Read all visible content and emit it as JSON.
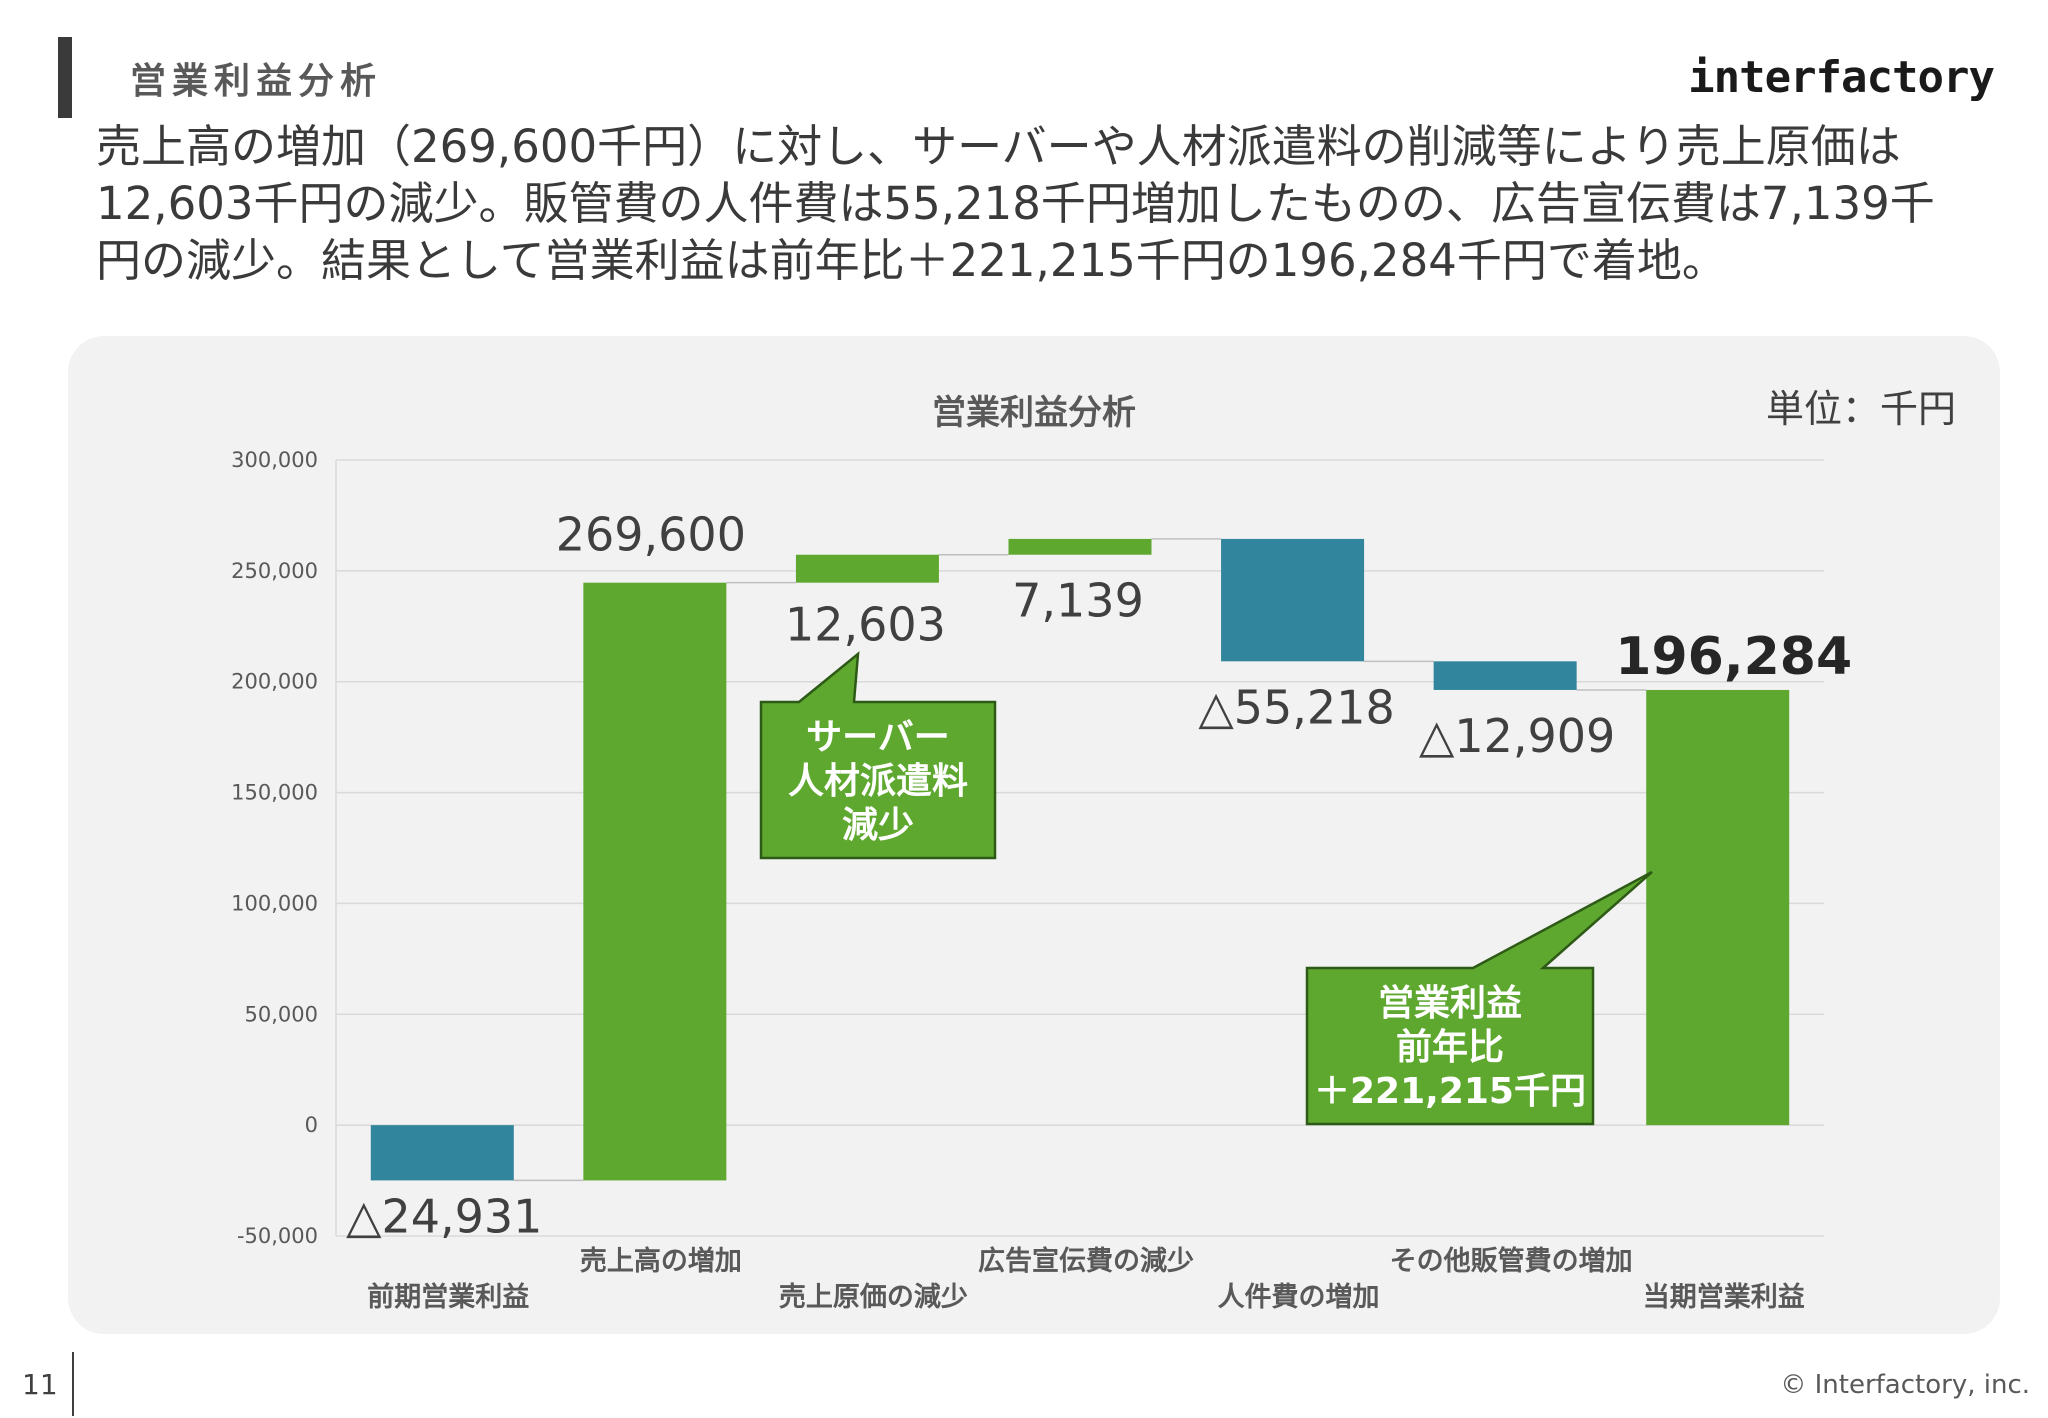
{
  "header": {
    "title": "営業利益分析",
    "brand": "interfactory"
  },
  "lead": [
    "売上高の増加（269,600千円）に対し、サーバーや人材派遣料の削減等により売上原価は",
    "12,603千円の減少。販管費の人件費は55,218千円増加したものの、広告宣伝費は7,139千",
    "円の減少。結果として営業利益は前年比＋221,215千円の196,284千円で着地。"
  ],
  "footer": {
    "page": "11",
    "copyright": "© Interfactory, inc."
  },
  "colors": {
    "increase": "#5fa830",
    "decrease": "#31859c",
    "callout_fill": "#5fa830",
    "callout_border": "#2d5a16",
    "panel": "#f2f2f2"
  },
  "chart_data": {
    "type": "bar",
    "subtype": "waterfall",
    "title": "営業利益分析",
    "unit_label": "単位：千円",
    "ylim": [
      -50000,
      300000
    ],
    "yticks": [
      "300,000",
      "250,000",
      "200,000",
      "150,000",
      "100,000",
      "50,000",
      "0",
      "-50,000"
    ],
    "ytick_values": [
      300000,
      250000,
      200000,
      150000,
      100000,
      50000,
      0,
      -50000
    ],
    "grid": true,
    "categories": [
      "前期営業利益",
      "売上高の増加",
      "売上原価の減少",
      "広告宣伝費の減少",
      "人件費の増加",
      "その他販管費の増加",
      "当期営業利益"
    ],
    "bars": [
      {
        "category": "前期営業利益",
        "from": 0,
        "to": -24931,
        "label": "△24,931",
        "color": "decrease"
      },
      {
        "category": "売上高の増加",
        "from": -24931,
        "to": 244669,
        "label": "269,600",
        "color": "increase"
      },
      {
        "category": "売上原価の減少",
        "from": 244669,
        "to": 257272,
        "label": "12,603",
        "color": "increase"
      },
      {
        "category": "広告宣伝費の減少",
        "from": 257272,
        "to": 264411,
        "label": "7,139",
        "color": "increase"
      },
      {
        "category": "人件費の増加",
        "from": 264411,
        "to": 209193,
        "label": "△55,218",
        "color": "decrease"
      },
      {
        "category": "その他販管費の増加",
        "from": 209193,
        "to": 196284,
        "label": "△12,909",
        "color": "decrease"
      },
      {
        "category": "当期営業利益",
        "from": 0,
        "to": 196284,
        "label": "196,284",
        "color": "increase"
      }
    ],
    "callouts": [
      {
        "lines": [
          "サーバー",
          "人材派遣料",
          "減少"
        ],
        "points_to": "売上原価の減少"
      },
      {
        "lines": [
          "営業利益",
          "前年比",
          "＋221,215千円"
        ],
        "points_to": "当期営業利益"
      }
    ]
  }
}
